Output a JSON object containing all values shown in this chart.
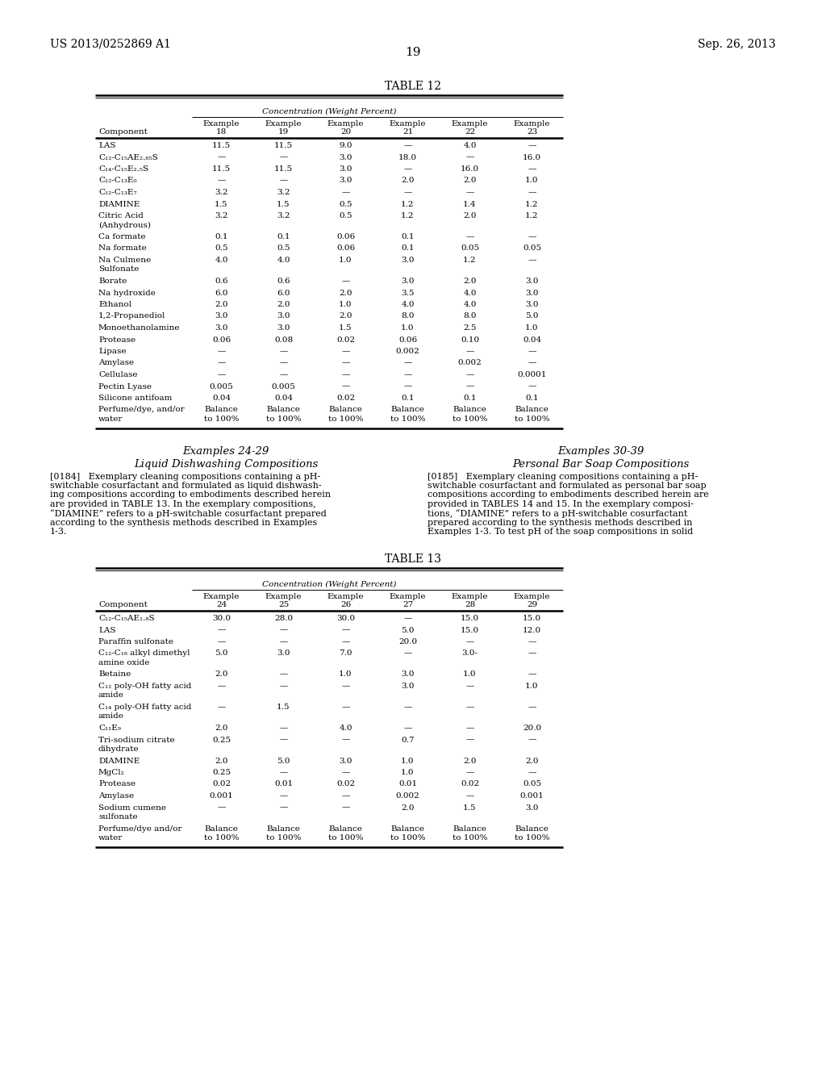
{
  "header_left": "US 2013/0252869 A1",
  "header_right": "Sep. 26, 2013",
  "page_number": "19",
  "table12_title": "TABLE 12",
  "conc_header": "Concentration (Weight Percent)",
  "table12_col_headers": [
    "Example\n18",
    "Example\n19",
    "Example\n20",
    "Example\n21",
    "Example\n22",
    "Example\n23"
  ],
  "table12_rows": [
    [
      "LAS",
      "11.5",
      "11.5",
      "9.0",
      "—",
      "4.0",
      "—"
    ],
    [
      "C₁₂-C₁₅AE₂.₈₅S",
      "—",
      "—",
      "3.0",
      "18.0",
      "—",
      "16.0"
    ],
    [
      "C₁₄-C₁₅E₂.₅S",
      "11.5",
      "11.5",
      "3.0",
      "—",
      "16.0",
      "—"
    ],
    [
      "C₁₂-C₁₃E₀",
      "—",
      "—",
      "3.0",
      "2.0",
      "2.0",
      "1.0"
    ],
    [
      "C₁₂-C₁₃E₇",
      "3.2",
      "3.2",
      "—",
      "—",
      "—",
      "—"
    ],
    [
      "DIAMINE",
      "1.5",
      "1.5",
      "0.5",
      "1.2",
      "1.4",
      "1.2"
    ],
    [
      "Citric Acid\n(Anhydrous)",
      "3.2",
      "3.2",
      "0.5",
      "1.2",
      "2.0",
      "1.2"
    ],
    [
      "Ca formate",
      "0.1",
      "0.1",
      "0.06",
      "0.1",
      "—",
      "—"
    ],
    [
      "Na formate",
      "0.5",
      "0.5",
      "0.06",
      "0.1",
      "0.05",
      "0.05"
    ],
    [
      "Na Culmene\nSulfonate",
      "4.0",
      "4.0",
      "1.0",
      "3.0",
      "1.2",
      "—"
    ],
    [
      "Borate",
      "0.6",
      "0.6",
      "—",
      "3.0",
      "2.0",
      "3.0"
    ],
    [
      "Na hydroxide",
      "6.0",
      "6.0",
      "2.0",
      "3.5",
      "4.0",
      "3.0"
    ],
    [
      "Ethanol",
      "2.0",
      "2.0",
      "1.0",
      "4.0",
      "4.0",
      "3.0"
    ],
    [
      "1,2-Propanediol",
      "3.0",
      "3.0",
      "2.0",
      "8.0",
      "8.0",
      "5.0"
    ],
    [
      "Monoethanolamine",
      "3.0",
      "3.0",
      "1.5",
      "1.0",
      "2.5",
      "1.0"
    ],
    [
      "Protease",
      "0.06",
      "0.08",
      "0.02",
      "0.06",
      "0.10",
      "0.04"
    ],
    [
      "Lipase",
      "—",
      "—",
      "—",
      "0.002",
      "—",
      "—"
    ],
    [
      "Amylase",
      "—",
      "—",
      "—",
      "—",
      "0.002",
      "—"
    ],
    [
      "Cellulase",
      "—",
      "—",
      "—",
      "—",
      "—",
      "0.0001"
    ],
    [
      "Pectin Lyase",
      "0.005",
      "0.005",
      "—",
      "—",
      "—",
      "—"
    ],
    [
      "Silicone antifoam",
      "0.04",
      "0.04",
      "0.02",
      "0.1",
      "0.1",
      "0.1"
    ],
    [
      "Perfume/dye, and/or\nwater",
      "Balance\nto 100%",
      "Balance\nto 100%",
      "Balance\nto 100%",
      "Balance\nto 100%",
      "Balance\nto 100%",
      "Balance\nto 100%"
    ]
  ],
  "section_left_title": "Examples 24-29",
  "section_left_subtitle": "Liquid Dishwashing Compositions",
  "section_left_para_lines": [
    "[0184]   Exemplary cleaning compositions containing a pH-",
    "switchable cosurfactant and formulated as liquid dishwash-",
    "ing compositions according to embodiments described herein",
    "are provided in TABLE 13. In the exemplary compositions,",
    "“DIAMINE” refers to a pH-switchable cosurfactant prepared",
    "according to the synthesis methods described in Examples",
    "1-3."
  ],
  "section_right_title": "Examples 30-39",
  "section_right_subtitle": "Personal Bar Soap Compositions",
  "section_right_para_lines": [
    "[0185]   Exemplary cleaning compositions containing a pH-",
    "switchable cosurfactant and formulated as personal bar soap",
    "compositions according to embodiments described herein are",
    "provided in TABLES 14 and 15. In the exemplary composi-",
    "tions, “DIAMINE” refers to a pH-switchable cosurfactant",
    "prepared according to the synthesis methods described in",
    "Examples 1-3. To test pH of the soap compositions in solid"
  ],
  "table13_title": "TABLE 13",
  "table13_col_headers": [
    "Example\n24",
    "Example\n25",
    "Example\n26",
    "Example\n27",
    "Example\n28",
    "Example\n29"
  ],
  "table13_rows": [
    [
      "C₁₂-C₁₅AE₁.₈S",
      "30.0",
      "28.0",
      "30.0",
      "—",
      "15.0",
      "15.0"
    ],
    [
      "LAS",
      "—",
      "—",
      "—",
      "5.0",
      "15.0",
      "12.0"
    ],
    [
      "Paraffin sulfonate",
      "—",
      "—",
      "—",
      "20.0",
      "—",
      "—"
    ],
    [
      "C₁₂-C₁₈ alkyl dimethyl\namine oxide",
      "5.0",
      "3.0",
      "7.0",
      "—",
      "3.0-",
      "—"
    ],
    [
      "Betaine",
      "2.0",
      "—",
      "1.0",
      "3.0",
      "1.0",
      "—"
    ],
    [
      "C₁₂ poly-OH fatty acid\namide",
      "—",
      "—",
      "—",
      "3.0",
      "—",
      "1.0"
    ],
    [
      "C₁₄ poly-OH fatty acid\namide",
      "—",
      "1.5",
      "—",
      "—",
      "—",
      "—"
    ],
    [
      "C₁₁E₉",
      "2.0",
      "—",
      "4.0",
      "—",
      "—",
      "20.0"
    ],
    [
      "Tri-sodium citrate\ndihydrate",
      "0.25",
      "—",
      "—",
      "0.7",
      "—",
      "—"
    ],
    [
      "DIAMINE",
      "2.0",
      "5.0",
      "3.0",
      "1.0",
      "2.0",
      "2.0"
    ],
    [
      "MgCl₂",
      "0.25",
      "—",
      "—",
      "1.0",
      "—",
      "—"
    ],
    [
      "Protease",
      "0.02",
      "0.01",
      "0.02",
      "0.01",
      "0.02",
      "0.05"
    ],
    [
      "Amylase",
      "0.001",
      "—",
      "—",
      "0.002",
      "—",
      "0.001"
    ],
    [
      "Sodium cumene\nsulfonate",
      "—",
      "—",
      "—",
      "2.0",
      "1.5",
      "3.0"
    ],
    [
      "Perfume/dye and/or\nwater",
      "Balance\nto 100%",
      "Balance\nto 100%",
      "Balance\nto 100%",
      "Balance\nto 100%",
      "Balance\nto 100%",
      "Balance\nto 100%"
    ]
  ],
  "bg_color": "#ffffff",
  "text_color": "#000000",
  "font_size_header": 10,
  "font_size_table": 7.5,
  "font_size_title": 10,
  "font_size_para": 8.0
}
